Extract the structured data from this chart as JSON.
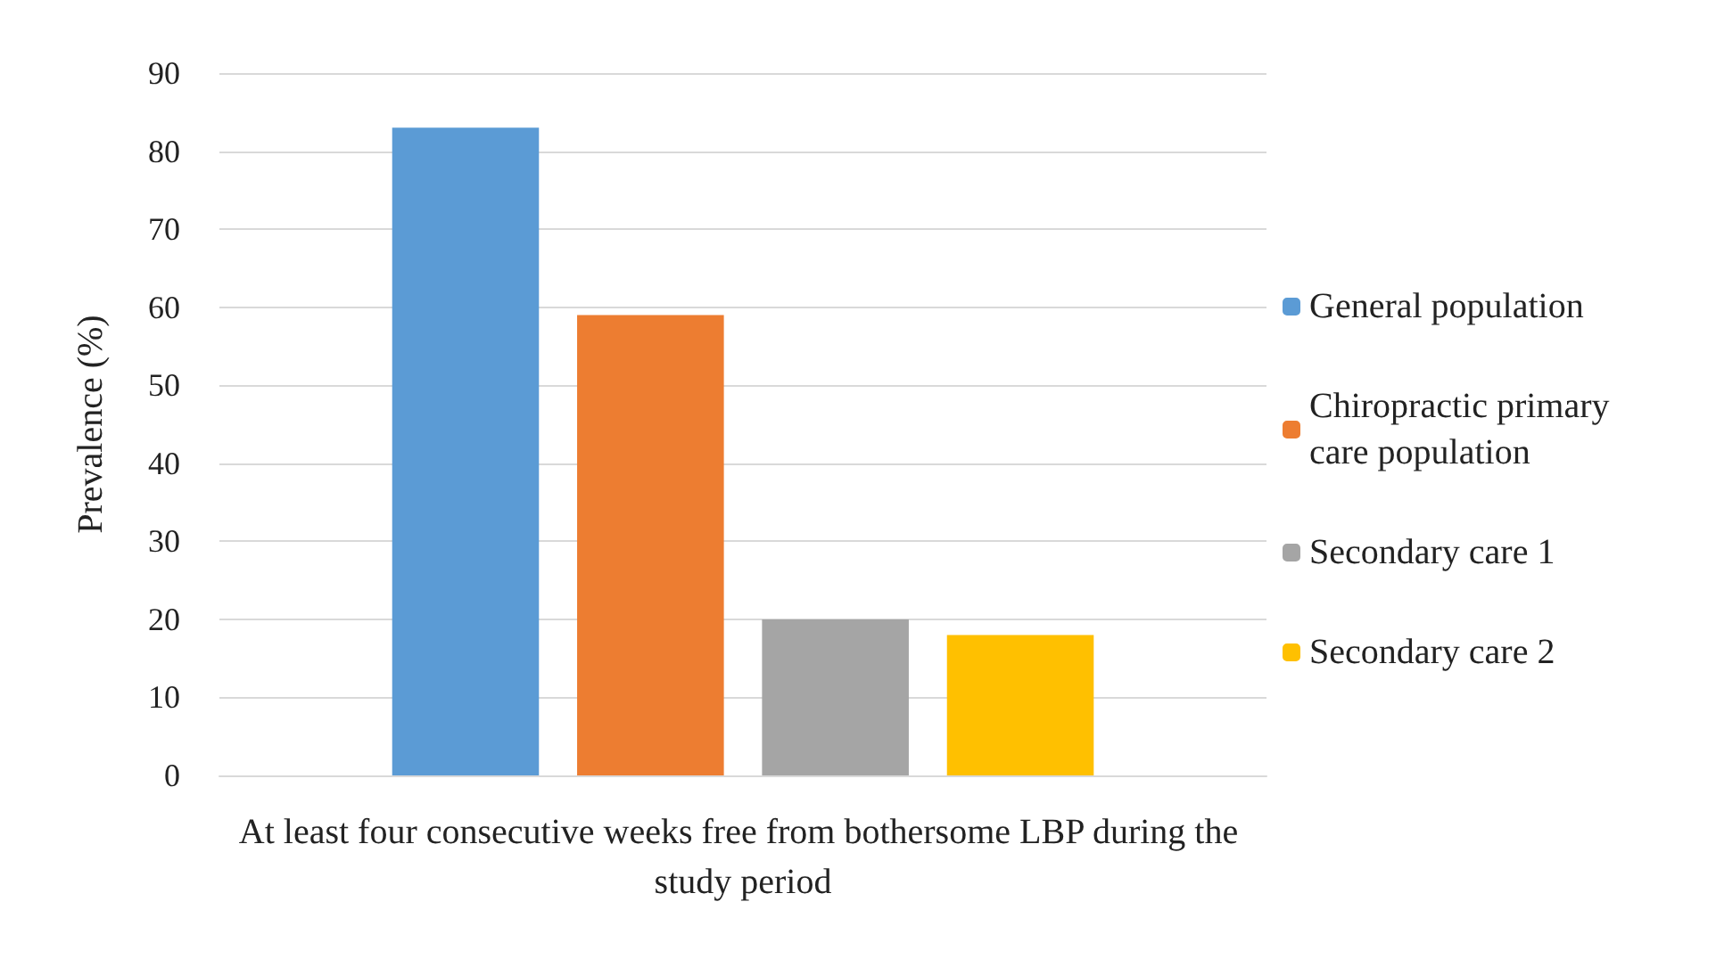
{
  "chart_data": {
    "type": "bar",
    "ylabel": "Prevalence (%)",
    "categories": [
      "At least four consecutive weeks free from bothersome LBP during the study period"
    ],
    "series": [
      {
        "name": "General population",
        "color": "#5b9bd5",
        "values": [
          83
        ]
      },
      {
        "name": "Chiropractic primary care population",
        "color": "#ed7d31",
        "values": [
          59
        ]
      },
      {
        "name": "Secondary care 1",
        "color": "#a5a5a5",
        "values": [
          20
        ]
      },
      {
        "name": "Secondary care 2",
        "color": "#ffc000",
        "values": [
          18
        ]
      }
    ],
    "ylim": [
      0,
      90
    ],
    "yticks": [
      0,
      10,
      20,
      30,
      40,
      50,
      60,
      70,
      80,
      90
    ],
    "grid": "y",
    "legend": "right"
  }
}
